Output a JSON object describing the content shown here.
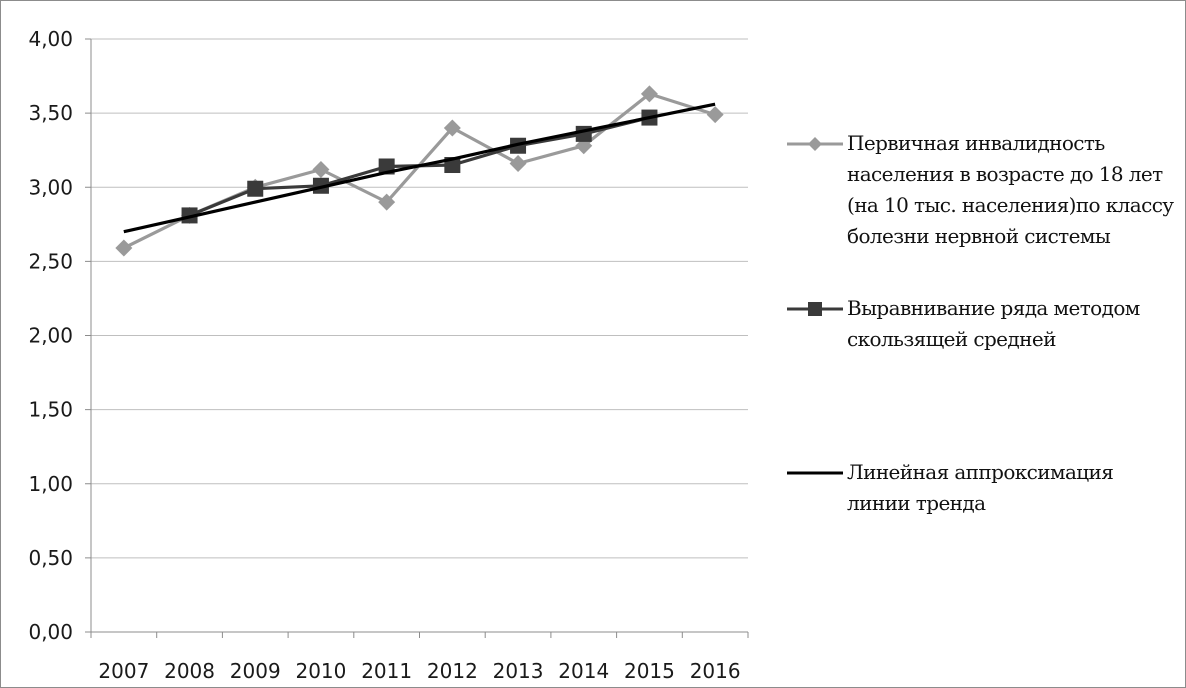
{
  "colors": {
    "series_primary": "#9a9a9a",
    "series_moving_avg": "#3a3a3a",
    "series_trend": "#000000",
    "grid": "#bfbfbf",
    "axis": "#8c8c8c"
  },
  "legend": {
    "item_1": "Первичная инвалидность населения в возрасте до 18 лет (на 10 тыс. населения)по классу болезни нервной системы",
    "item_2": "Выравнивание ряда методом скользящей средней",
    "item_3": "Линейная аппроксимация линии тренда"
  },
  "chart_data": {
    "type": "line",
    "categories": [
      "2007",
      "2008",
      "2009",
      "2010",
      "2011",
      "2012",
      "2013",
      "2014",
      "2015",
      "2016"
    ],
    "ylim": [
      0,
      4
    ],
    "ytick_labels": [
      "0,00",
      "0,50",
      "1,00",
      "1,50",
      "2,00",
      "2,50",
      "3,00",
      "3,50",
      "4,00"
    ],
    "ytick_values": [
      0,
      0.5,
      1,
      1.5,
      2,
      2.5,
      3,
      3.5,
      4
    ],
    "grid": true,
    "legend_position": "right",
    "xlabel": "",
    "ylabel": "",
    "title": "",
    "series": [
      {
        "name": "Первичная инвалидность населения в возрасте до 18 лет (на 10 тыс. населения)по классу болезни нервной системы",
        "marker": "diamond",
        "values": [
          2.59,
          2.81,
          3.0,
          3.12,
          2.9,
          3.4,
          3.16,
          3.28,
          3.63,
          3.49
        ]
      },
      {
        "name": "Выравнивание ряда методом скользящей средней",
        "marker": "square",
        "values": [
          null,
          2.81,
          2.99,
          3.01,
          3.14,
          3.15,
          3.28,
          3.36,
          3.47,
          null
        ]
      },
      {
        "name": "Линейная аппроксимация линии тренда",
        "marker": "none",
        "values": [
          2.7,
          2.8,
          2.9,
          3.0,
          3.1,
          3.19,
          3.29,
          3.38,
          3.47,
          3.56
        ]
      }
    ]
  }
}
